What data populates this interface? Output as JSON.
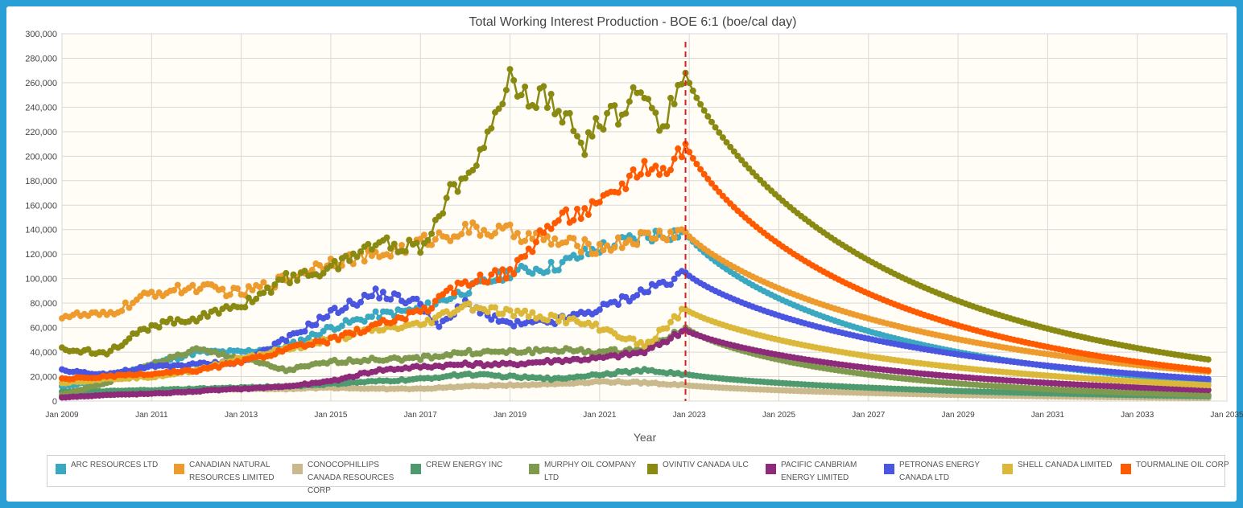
{
  "chart_data": {
    "type": "line",
    "title": "Total Working Interest Production - BOE 6:1 (boe/cal day)",
    "xlabel": "Year",
    "ylabel": "",
    "ylim": [
      0,
      300000
    ],
    "xlim": [
      "2009-01",
      "2035-01"
    ],
    "yticks": [
      "0",
      "20,000",
      "40,000",
      "60,000",
      "80,000",
      "100,000",
      "120,000",
      "140,000",
      "160,000",
      "180,000",
      "200,000",
      "220,000",
      "240,000",
      "260,000",
      "280,000",
      "300,000"
    ],
    "xticks": [
      "Jan 2009",
      "Jan 2011",
      "Jan 2013",
      "Jan 2015",
      "Jan 2017",
      "Jan 2019",
      "Jan 2021",
      "Jan 2023",
      "Jan 2025",
      "Jan 2027",
      "Jan 2029",
      "Jan 2031",
      "Jan 2033",
      "Jan 2035"
    ],
    "forecast_start": "2022-12",
    "forecast_end": "2034-08",
    "grid": true,
    "legend_position": "bottom",
    "series": [
      {
        "name": "ARC RESOURCES LTD",
        "color": "#3aa8c1",
        "history": [
          [
            "2009-01",
            12000
          ],
          [
            "2010-01",
            18000
          ],
          [
            "2011-01",
            30000
          ],
          [
            "2012-01",
            40000
          ],
          [
            "2013-01",
            40000
          ],
          [
            "2014-01",
            44000
          ],
          [
            "2015-01",
            60000
          ],
          [
            "2016-01",
            70000
          ],
          [
            "2017-01",
            75000
          ],
          [
            "2018-01",
            90000
          ],
          [
            "2019-01",
            105000
          ],
          [
            "2020-01",
            110000
          ],
          [
            "2021-01",
            125000
          ],
          [
            "2022-01",
            135000
          ],
          [
            "2022-12",
            138000
          ]
        ],
        "end": 16000
      },
      {
        "name": "CANADIAN NATURAL RESOURCES LIMITED",
        "color": "#ed9b2d",
        "history": [
          [
            "2009-01",
            70000
          ],
          [
            "2010-01",
            70000
          ],
          [
            "2011-01",
            88000
          ],
          [
            "2012-01",
            93000
          ],
          [
            "2013-01",
            88000
          ],
          [
            "2014-01",
            100000
          ],
          [
            "2015-01",
            115000
          ],
          [
            "2016-01",
            118000
          ],
          [
            "2017-01",
            130000
          ],
          [
            "2018-01",
            140000
          ],
          [
            "2019-01",
            138000
          ],
          [
            "2020-01",
            130000
          ],
          [
            "2021-01",
            125000
          ],
          [
            "2022-01",
            134000
          ],
          [
            "2022-12",
            138000
          ]
        ],
        "end": 24000
      },
      {
        "name": "CONOCOPHILLIPS CANADA RESOURCES CORP",
        "color": "#c9b98c",
        "history": [
          [
            "2009-01",
            4000
          ],
          [
            "2010-01",
            6000
          ],
          [
            "2011-01",
            8000
          ],
          [
            "2012-01",
            9000
          ],
          [
            "2013-01",
            10000
          ],
          [
            "2014-01",
            10000
          ],
          [
            "2015-01",
            11000
          ],
          [
            "2016-01",
            10000
          ],
          [
            "2017-01",
            10000
          ],
          [
            "2018-01",
            12000
          ],
          [
            "2019-01",
            13000
          ],
          [
            "2020-01",
            14000
          ],
          [
            "2021-01",
            16000
          ],
          [
            "2022-01",
            15000
          ],
          [
            "2022-12",
            13000
          ]
        ],
        "end": 2500
      },
      {
        "name": "CREW ENERGY INC",
        "color": "#4e9a6e",
        "history": [
          [
            "2009-01",
            8000
          ],
          [
            "2010-01",
            8000
          ],
          [
            "2011-01",
            9000
          ],
          [
            "2012-01",
            10000
          ],
          [
            "2013-01",
            11000
          ],
          [
            "2014-01",
            12000
          ],
          [
            "2015-01",
            14000
          ],
          [
            "2016-01",
            16000
          ],
          [
            "2017-01",
            18000
          ],
          [
            "2018-01",
            22000
          ],
          [
            "2019-01",
            20000
          ],
          [
            "2020-01",
            18000
          ],
          [
            "2021-01",
            22000
          ],
          [
            "2022-01",
            25000
          ],
          [
            "2022-12",
            22000
          ]
        ],
        "end": 4000
      },
      {
        "name": "MURPHY OIL COMPANY LTD",
        "color": "#7f9a4e",
        "history": [
          [
            "2009-01",
            5000
          ],
          [
            "2010-01",
            15000
          ],
          [
            "2011-01",
            30000
          ],
          [
            "2012-01",
            42000
          ],
          [
            "2013-01",
            35000
          ],
          [
            "2014-01",
            25000
          ],
          [
            "2015-01",
            32000
          ],
          [
            "2016-01",
            34000
          ],
          [
            "2017-01",
            35000
          ],
          [
            "2018-01",
            40000
          ],
          [
            "2019-01",
            40000
          ],
          [
            "2020-01",
            42000
          ],
          [
            "2021-01",
            40000
          ],
          [
            "2022-01",
            42000
          ],
          [
            "2022-12",
            60000
          ]
        ],
        "end": 5000
      },
      {
        "name": "OVINTIV CANADA ULC",
        "color": "#8a8a12",
        "history": [
          [
            "2009-01",
            42000
          ],
          [
            "2010-01",
            40000
          ],
          [
            "2011-01",
            62000
          ],
          [
            "2012-01",
            68000
          ],
          [
            "2013-01",
            78000
          ],
          [
            "2014-01",
            100000
          ],
          [
            "2015-01",
            108000
          ],
          [
            "2016-01",
            130000
          ],
          [
            "2017-01",
            125000
          ],
          [
            "2017-09",
            170000
          ],
          [
            "2018-06",
            210000
          ],
          [
            "2019-01",
            262000
          ],
          [
            "2019-06",
            248000
          ],
          [
            "2020-01",
            245000
          ],
          [
            "2020-09",
            205000
          ],
          [
            "2021-01",
            230000
          ],
          [
            "2021-06",
            235000
          ],
          [
            "2022-01",
            255000
          ],
          [
            "2022-06",
            225000
          ],
          [
            "2022-12",
            268000
          ]
        ],
        "end": 34000
      },
      {
        "name": "PACIFIC CANBRIAM ENERGY LIMITED",
        "color": "#8e2a7a",
        "history": [
          [
            "2009-01",
            3000
          ],
          [
            "2010-01",
            5000
          ],
          [
            "2011-01",
            6000
          ],
          [
            "2012-01",
            8000
          ],
          [
            "2013-01",
            10000
          ],
          [
            "2014-01",
            12000
          ],
          [
            "2015-01",
            16000
          ],
          [
            "2016-01",
            25000
          ],
          [
            "2017-01",
            28000
          ],
          [
            "2018-01",
            30000
          ],
          [
            "2019-01",
            30000
          ],
          [
            "2020-01",
            33000
          ],
          [
            "2021-01",
            35000
          ],
          [
            "2022-01",
            40000
          ],
          [
            "2022-12",
            58000
          ]
        ],
        "end": 9000
      },
      {
        "name": "PETRONAS ENERGY CANADA LTD",
        "color": "#4a55e0",
        "history": [
          [
            "2009-01",
            25000
          ],
          [
            "2010-01",
            22000
          ],
          [
            "2011-01",
            28000
          ],
          [
            "2012-01",
            30000
          ],
          [
            "2013-01",
            32000
          ],
          [
            "2014-01",
            50000
          ],
          [
            "2015-01",
            72000
          ],
          [
            "2016-01",
            88000
          ],
          [
            "2017-01",
            80000
          ],
          [
            "2017-06",
            60000
          ],
          [
            "2018-01",
            80000
          ],
          [
            "2019-01",
            62000
          ],
          [
            "2020-01",
            65000
          ],
          [
            "2021-01",
            75000
          ],
          [
            "2022-01",
            90000
          ],
          [
            "2022-12",
            105000
          ]
        ],
        "end": 18000
      },
      {
        "name": "SHELL CANADA LIMITED",
        "color": "#dbb83a",
        "history": [
          [
            "2009-01",
            15000
          ],
          [
            "2010-01",
            18000
          ],
          [
            "2011-01",
            20000
          ],
          [
            "2012-01",
            25000
          ],
          [
            "2013-01",
            35000
          ],
          [
            "2014-01",
            42000
          ],
          [
            "2015-01",
            50000
          ],
          [
            "2016-01",
            58000
          ],
          [
            "2017-01",
            62000
          ],
          [
            "2018-01",
            78000
          ],
          [
            "2019-01",
            72000
          ],
          [
            "2020-01",
            68000
          ],
          [
            "2021-01",
            60000
          ],
          [
            "2022-01",
            45000
          ],
          [
            "2022-12",
            75000
          ]
        ],
        "end": 13000
      },
      {
        "name": "TOURMALINE OIL CORP",
        "color": "#ff5a00",
        "history": [
          [
            "2009-01",
            18000
          ],
          [
            "2010-01",
            20000
          ],
          [
            "2011-01",
            22000
          ],
          [
            "2012-01",
            25000
          ],
          [
            "2013-01",
            32000
          ],
          [
            "2014-01",
            42000
          ],
          [
            "2015-01",
            50000
          ],
          [
            "2016-01",
            62000
          ],
          [
            "2017-01",
            72000
          ],
          [
            "2018-01",
            98000
          ],
          [
            "2019-01",
            105000
          ],
          [
            "2020-01",
            148000
          ],
          [
            "2021-01",
            160000
          ],
          [
            "2022-01",
            195000
          ],
          [
            "2022-06",
            188000
          ],
          [
            "2022-12",
            210000
          ]
        ],
        "end": 25000
      }
    ]
  }
}
